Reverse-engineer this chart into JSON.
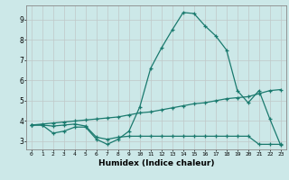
{
  "xlabel": "Humidex (Indice chaleur)",
  "bg_color": "#cce8e8",
  "grid_color": "#c8d0d0",
  "line_color": "#1a7a6e",
  "xlim": [
    -0.5,
    23.5
  ],
  "ylim": [
    2.6,
    9.7
  ],
  "xticks": [
    0,
    1,
    2,
    3,
    4,
    5,
    6,
    7,
    8,
    9,
    10,
    11,
    12,
    13,
    14,
    15,
    16,
    17,
    18,
    19,
    20,
    21,
    22,
    23
  ],
  "yticks": [
    3,
    4,
    5,
    6,
    7,
    8,
    9
  ],
  "line1_x": [
    0,
    1,
    2,
    3,
    4,
    5,
    6,
    7,
    8,
    9,
    10,
    11,
    12,
    13,
    14,
    15,
    16,
    17,
    18,
    19,
    20,
    21,
    22,
    23
  ],
  "line1_y": [
    3.8,
    3.8,
    3.4,
    3.5,
    3.7,
    3.7,
    3.1,
    2.85,
    3.1,
    3.5,
    4.7,
    6.6,
    7.6,
    8.5,
    9.35,
    9.3,
    8.7,
    8.2,
    7.5,
    5.5,
    4.9,
    5.5,
    4.1,
    2.8
  ],
  "line2_x": [
    0,
    1,
    2,
    3,
    4,
    5,
    6,
    7,
    8,
    9,
    10,
    11,
    12,
    13,
    14,
    15,
    16,
    17,
    18,
    19,
    20,
    21,
    22,
    23
  ],
  "line2_y": [
    3.8,
    3.85,
    3.9,
    3.95,
    4.0,
    4.05,
    4.1,
    4.15,
    4.2,
    4.3,
    4.4,
    4.45,
    4.55,
    4.65,
    4.75,
    4.85,
    4.9,
    5.0,
    5.1,
    5.15,
    5.2,
    5.35,
    5.5,
    5.55
  ],
  "line3_x": [
    0,
    1,
    2,
    3,
    4,
    5,
    6,
    7,
    8,
    9,
    10,
    11,
    12,
    13,
    14,
    15,
    16,
    17,
    18,
    19,
    20,
    21,
    22,
    23
  ],
  "line3_y": [
    3.8,
    3.8,
    3.75,
    3.8,
    3.85,
    3.75,
    3.2,
    3.1,
    3.2,
    3.25,
    3.25,
    3.25,
    3.25,
    3.25,
    3.25,
    3.25,
    3.25,
    3.25,
    3.25,
    3.25,
    3.25,
    2.85,
    2.85,
    2.85
  ]
}
